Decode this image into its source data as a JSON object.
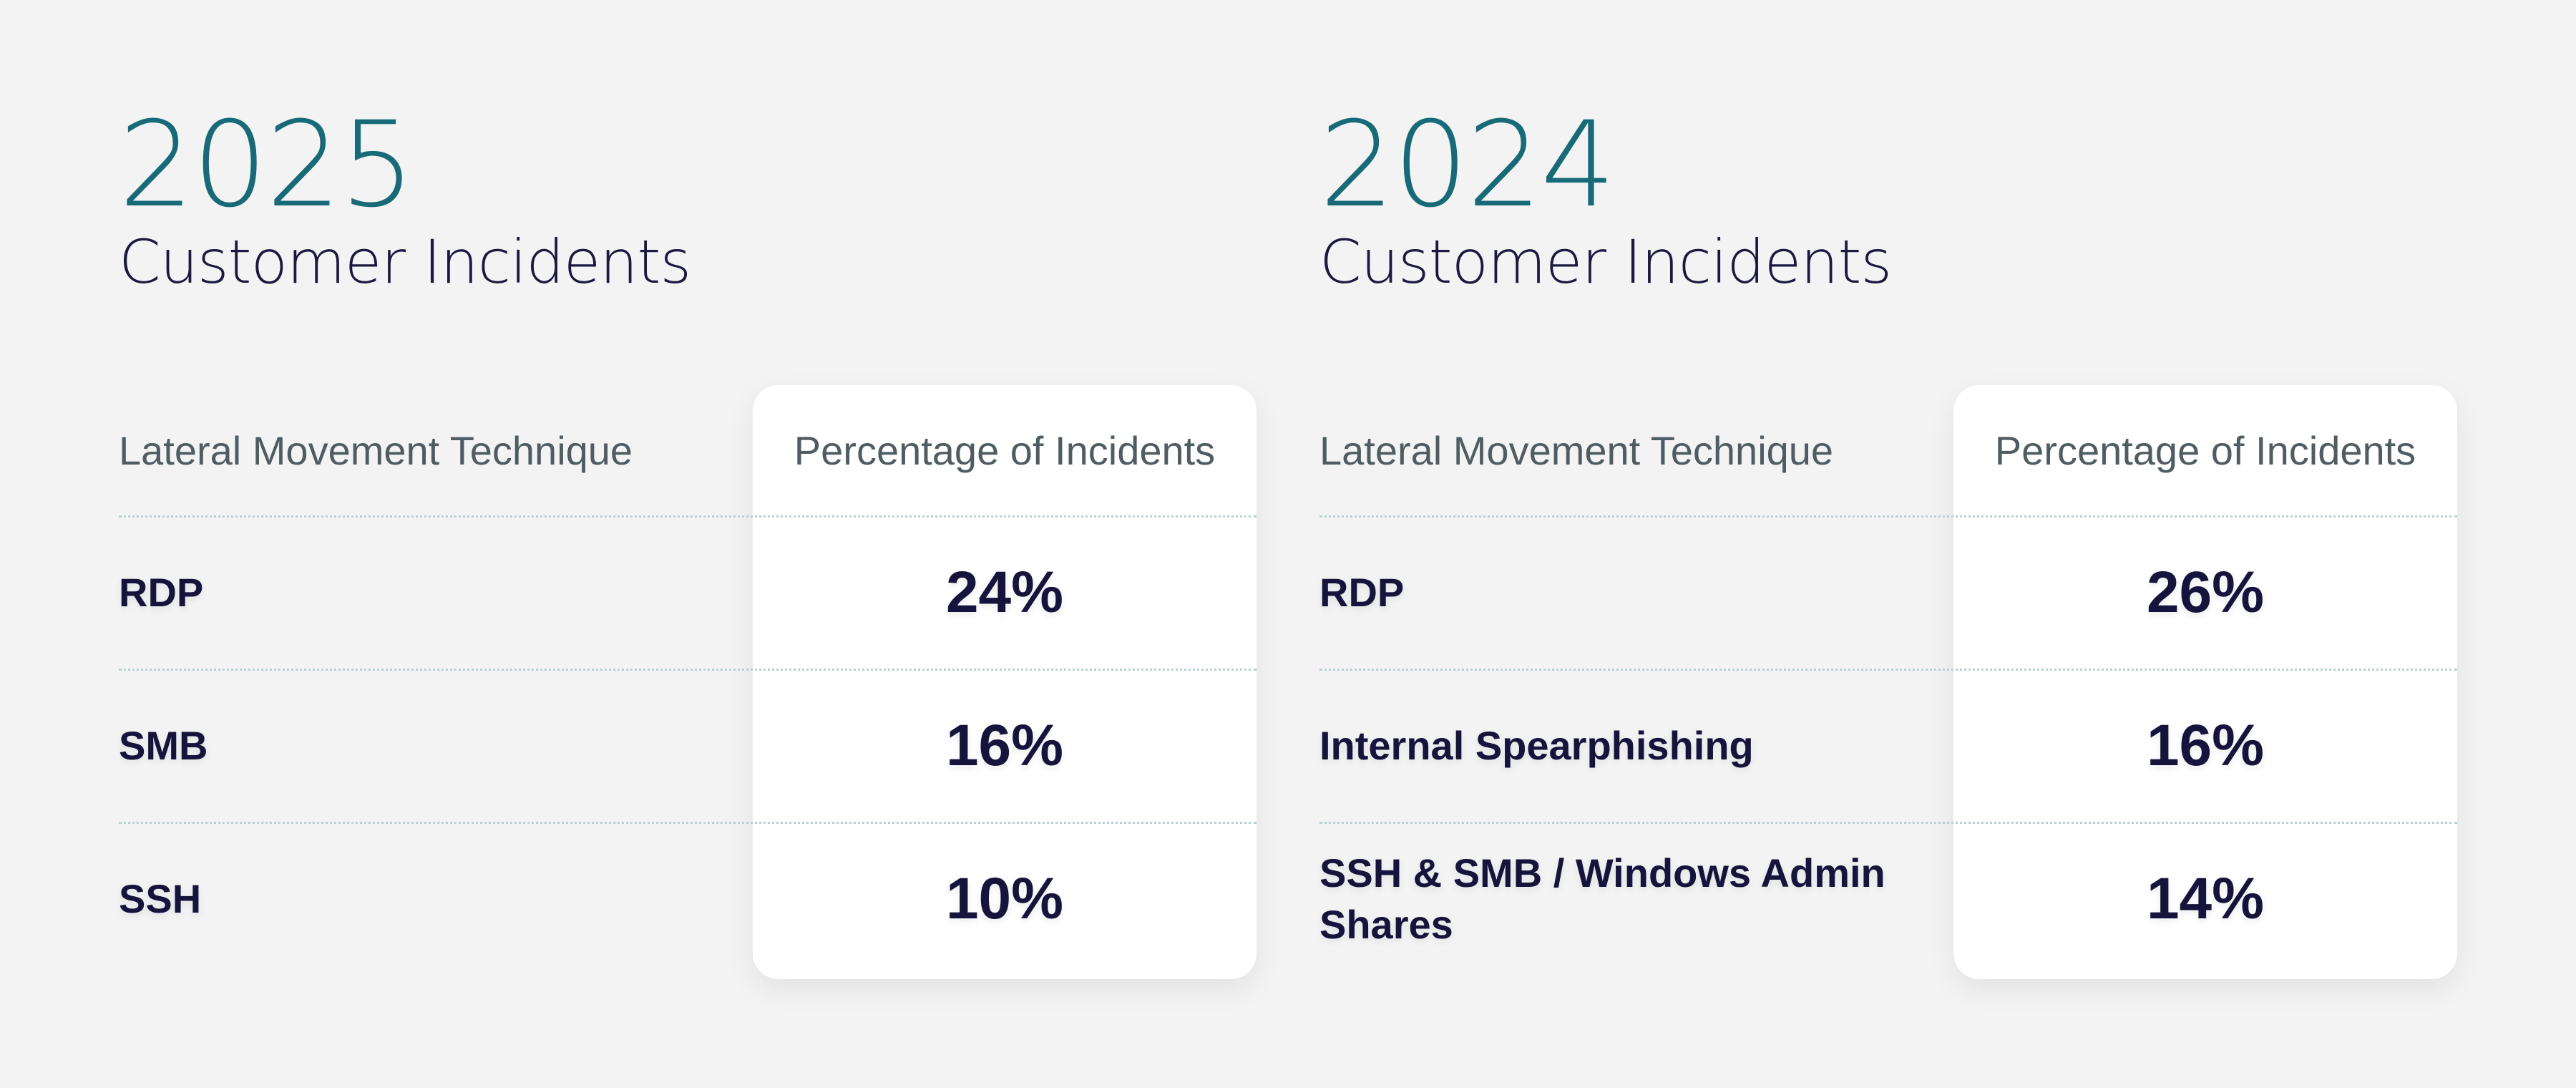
{
  "panels": [
    {
      "year": "2025",
      "subtitle": "Customer Incidents",
      "columns": {
        "technique": "Lateral Movement Technique",
        "percentage": "Percentage of Incidents"
      },
      "rows": [
        {
          "technique": "RDP",
          "percentage": "24%"
        },
        {
          "technique": "SMB",
          "percentage": "16%"
        },
        {
          "technique": "SSH",
          "percentage": "10%"
        }
      ]
    },
    {
      "year": "2024",
      "subtitle": "Customer Incidents",
      "columns": {
        "technique": "Lateral Movement Technique",
        "percentage": "Percentage of Incidents"
      },
      "rows": [
        {
          "technique": "RDP",
          "percentage": "26%"
        },
        {
          "technique": "Internal Spearphishing",
          "percentage": "16%"
        },
        {
          "technique": "SSH & SMB / Windows Admin Shares",
          "percentage": "14%"
        }
      ]
    }
  ],
  "colors": {
    "background": "#f3f3f3",
    "year": "#176a78",
    "text": "#16133c",
    "header": "#4f5d62",
    "card": "#ffffff",
    "rule": "#b8d0d2"
  }
}
